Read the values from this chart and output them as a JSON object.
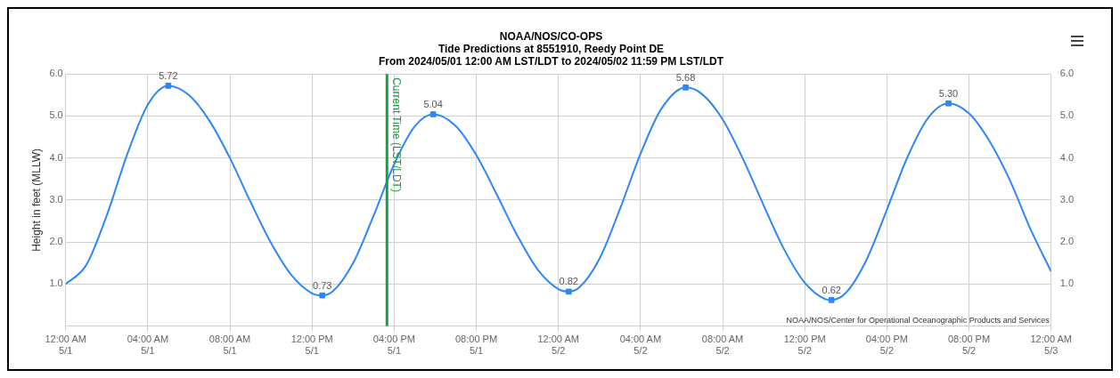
{
  "chart_data": {
    "type": "line",
    "title": "NOAA/NOS/CO-OPS",
    "subtitle": "Tide Predictions at 8551910, Reedy Point DE\nFrom 2024/05/01 12:00 AM LST/LDT to 2024/05/02 11:59 PM LST/LDT",
    "ylabel": "Height in feet (MLLW)",
    "xlim": [
      "2024-05-01T00:00",
      "2024-05-03T00:00"
    ],
    "xticks": [
      {
        "value": "2024-05-01T00:00",
        "label": "12:00 AM\n5/1"
      },
      {
        "value": "2024-05-01T04:00",
        "label": "04:00 AM\n5/1"
      },
      {
        "value": "2024-05-01T08:00",
        "label": "08:00 AM\n5/1"
      },
      {
        "value": "2024-05-01T12:00",
        "label": "12:00 PM\n5/1"
      },
      {
        "value": "2024-05-01T16:00",
        "label": "04:00 PM\n5/1"
      },
      {
        "value": "2024-05-01T20:00",
        "label": "08:00 PM\n5/1"
      },
      {
        "value": "2024-05-02T00:00",
        "label": "12:00 AM\n5/2"
      },
      {
        "value": "2024-05-02T04:00",
        "label": "04:00 AM\n5/2"
      },
      {
        "value": "2024-05-02T08:00",
        "label": "08:00 AM\n5/2"
      },
      {
        "value": "2024-05-02T12:00",
        "label": "12:00 PM\n5/2"
      },
      {
        "value": "2024-05-02T16:00",
        "label": "04:00 PM\n5/2"
      },
      {
        "value": "2024-05-02T20:00",
        "label": "08:00 PM\n5/2"
      },
      {
        "value": "2024-05-03T00:00",
        "label": "12:00 AM\n5/3"
      }
    ],
    "ylim": [
      0,
      6
    ],
    "yticks": [
      {
        "value": 0,
        "label": null
      },
      {
        "value": 1,
        "label": "1.0"
      },
      {
        "value": 2,
        "label": "2.0"
      },
      {
        "value": 3,
        "label": "3.0"
      },
      {
        "value": 4,
        "label": "4.0"
      },
      {
        "value": 5,
        "label": "5.0"
      },
      {
        "value": 6,
        "label": "6.0"
      }
    ],
    "y2lim": [
      0,
      6
    ],
    "y2ticks": [
      {
        "value": 0,
        "label": null
      },
      {
        "value": 1,
        "label": "1.0"
      },
      {
        "value": 2,
        "label": "2.0"
      },
      {
        "value": 3,
        "label": "3.0"
      },
      {
        "value": 4,
        "label": "4.0"
      },
      {
        "value": 5,
        "label": "5.0"
      },
      {
        "value": 6,
        "label": "6.0"
      }
    ],
    "grid": true,
    "legend": false,
    "series": [
      {
        "color": "#2f86f6",
        "marker": "none",
        "x": [
          "2024-05-01T00:00",
          "2024-05-01T01:00",
          "2024-05-01T02:00",
          "2024-05-01T03:00",
          "2024-05-01T04:00",
          "2024-05-01T05:00",
          "2024-05-01T06:00",
          "2024-05-01T07:00",
          "2024-05-01T08:00",
          "2024-05-01T09:00",
          "2024-05-01T10:00",
          "2024-05-01T11:00",
          "2024-05-01T12:00",
          "2024-05-01T12:30",
          "2024-05-01T13:00",
          "2024-05-01T14:00",
          "2024-05-01T15:00",
          "2024-05-01T16:00",
          "2024-05-01T17:00",
          "2024-05-01T17:54",
          "2024-05-01T19:00",
          "2024-05-01T20:00",
          "2024-05-01T21:00",
          "2024-05-01T22:00",
          "2024-05-01T23:00",
          "2024-05-02T00:00",
          "2024-05-02T00:30",
          "2024-05-02T01:00",
          "2024-05-02T02:00",
          "2024-05-02T03:00",
          "2024-05-02T04:00",
          "2024-05-02T05:00",
          "2024-05-02T06:12",
          "2024-05-02T07:00",
          "2024-05-02T08:00",
          "2024-05-02T09:00",
          "2024-05-02T10:00",
          "2024-05-02T11:00",
          "2024-05-02T12:00",
          "2024-05-02T13:00",
          "2024-05-02T13:18",
          "2024-05-02T14:00",
          "2024-05-02T15:00",
          "2024-05-02T16:00",
          "2024-05-02T17:00",
          "2024-05-02T18:00",
          "2024-05-02T19:00",
          "2024-05-02T20:00",
          "2024-05-02T21:00",
          "2024-05-02T22:00",
          "2024-05-02T23:00",
          "2024-05-03T00:00"
        ],
        "values": [
          1.0,
          1.45,
          2.63,
          4.09,
          5.27,
          5.72,
          5.5,
          4.89,
          4.0,
          2.96,
          1.98,
          1.21,
          0.78,
          0.73,
          0.82,
          1.5,
          2.63,
          3.85,
          4.75,
          5.04,
          4.76,
          4.07,
          3.13,
          2.15,
          1.34,
          0.88,
          0.82,
          0.91,
          1.6,
          2.79,
          4.1,
          5.16,
          5.68,
          5.52,
          4.92,
          3.97,
          2.87,
          1.82,
          1.03,
          0.64,
          0.62,
          0.79,
          1.57,
          2.77,
          4.02,
          4.95,
          5.3,
          5.06,
          4.4,
          3.46,
          2.3,
          1.3
        ]
      },
      {
        "type": "scatter",
        "color": "#2f86f6",
        "marker": "square",
        "x": [
          "2024-05-01T05:00",
          "2024-05-01T12:30",
          "2024-05-01T17:54",
          "2024-05-02T00:30",
          "2024-05-02T06:12",
          "2024-05-02T13:18",
          "2024-05-02T19:00"
        ],
        "values": [
          5.72,
          0.73,
          5.04,
          0.82,
          5.68,
          0.62,
          5.3
        ],
        "value_labels": [
          "5.72",
          "0.73",
          "5.04",
          "0.82",
          "5.68",
          "0.62",
          "5.30"
        ]
      }
    ],
    "ref_lines": [
      {
        "axis": "x",
        "value": "2024-05-01T15:39",
        "label": "Current Time (LST/LDT)",
        "color": "#18a03a"
      }
    ],
    "annotations": [
      "NOAA/NOS/Center for Operational Oceanographic Products and Services"
    ]
  }
}
